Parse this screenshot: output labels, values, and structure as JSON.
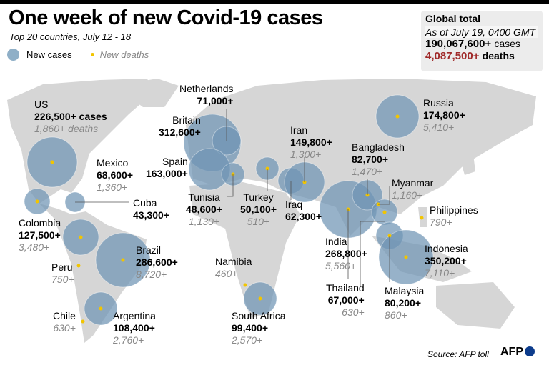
{
  "title": "One week of new Covid-19 cases",
  "subtitle": "Top 20 countries, July 12 - 18",
  "legend": {
    "cases": "New cases",
    "deaths": "New deaths"
  },
  "global": {
    "heading": "Global total",
    "as_of": "As of July 19, 0400 GMT",
    "cases": "190,067,600+",
    "cases_unit": "cases",
    "deaths": "4,087,500+",
    "deaths_unit": "deaths"
  },
  "colors": {
    "bubble": "#6f94b4",
    "death_dot": "#f2c500",
    "land": "#d6d6d6",
    "deaths_total": "#a02a2a"
  },
  "countries": [
    {
      "name": "US",
      "cases": "226,500+ cases",
      "deaths": "1,860+ deaths",
      "value": 226500
    },
    {
      "name": "Mexico",
      "cases": "68,600+",
      "deaths": "1,360+",
      "value": 68600
    },
    {
      "name": "Cuba",
      "cases": "43,300+",
      "value": 43300
    },
    {
      "name": "Colombia",
      "cases": "127,500+",
      "deaths": "3,480+",
      "value": 127500
    },
    {
      "name": "Peru",
      "deaths": "750+"
    },
    {
      "name": "Brazil",
      "cases": "286,600+",
      "deaths": "8,720+",
      "value": 286600
    },
    {
      "name": "Chile",
      "deaths": "630+"
    },
    {
      "name": "Argentina",
      "cases": "108,400+",
      "deaths": "2,760+",
      "value": 108400
    },
    {
      "name": "Netherlands",
      "cases": "71,000+",
      "value": 71000
    },
    {
      "name": "Britain",
      "cases": "312,600+",
      "value": 312600
    },
    {
      "name": "Spain",
      "cases": "163,000+",
      "value": 163000
    },
    {
      "name": "Tunisia",
      "cases": "48,600+",
      "deaths": "1,130+",
      "value": 48600
    },
    {
      "name": "Turkey",
      "cases": "50,100+",
      "deaths": "510+",
      "value": 50100
    },
    {
      "name": "Iran",
      "cases": "149,800+",
      "deaths": "1,300+",
      "value": 149800
    },
    {
      "name": "Iraq",
      "cases": "62,300+",
      "value": 62300
    },
    {
      "name": "Namibia",
      "deaths": "460+"
    },
    {
      "name": "South Africa",
      "cases": "99,400+",
      "deaths": "2,570+",
      "value": 99400
    },
    {
      "name": "Russia",
      "cases": "174,800+",
      "deaths": "5,410+",
      "value": 174800
    },
    {
      "name": "Bangladesh",
      "cases": "82,700+",
      "deaths": "1,470+",
      "value": 82700
    },
    {
      "name": "Myanmar",
      "deaths": "1,160+"
    },
    {
      "name": "India",
      "cases": "268,800+",
      "deaths": "5,560+",
      "value": 268800
    },
    {
      "name": "Thailand",
      "cases": "67,000+",
      "deaths": "630+",
      "value": 67000
    },
    {
      "name": "Malaysia",
      "cases": "80,200+",
      "deaths": "860+",
      "value": 80200
    },
    {
      "name": "Philippines",
      "deaths": "790+"
    },
    {
      "name": "Indonesia",
      "cases": "350,200+",
      "deaths": "7,110+",
      "value": 350200
    }
  ],
  "source": "Source: AFP toll",
  "logo": "AFP"
}
